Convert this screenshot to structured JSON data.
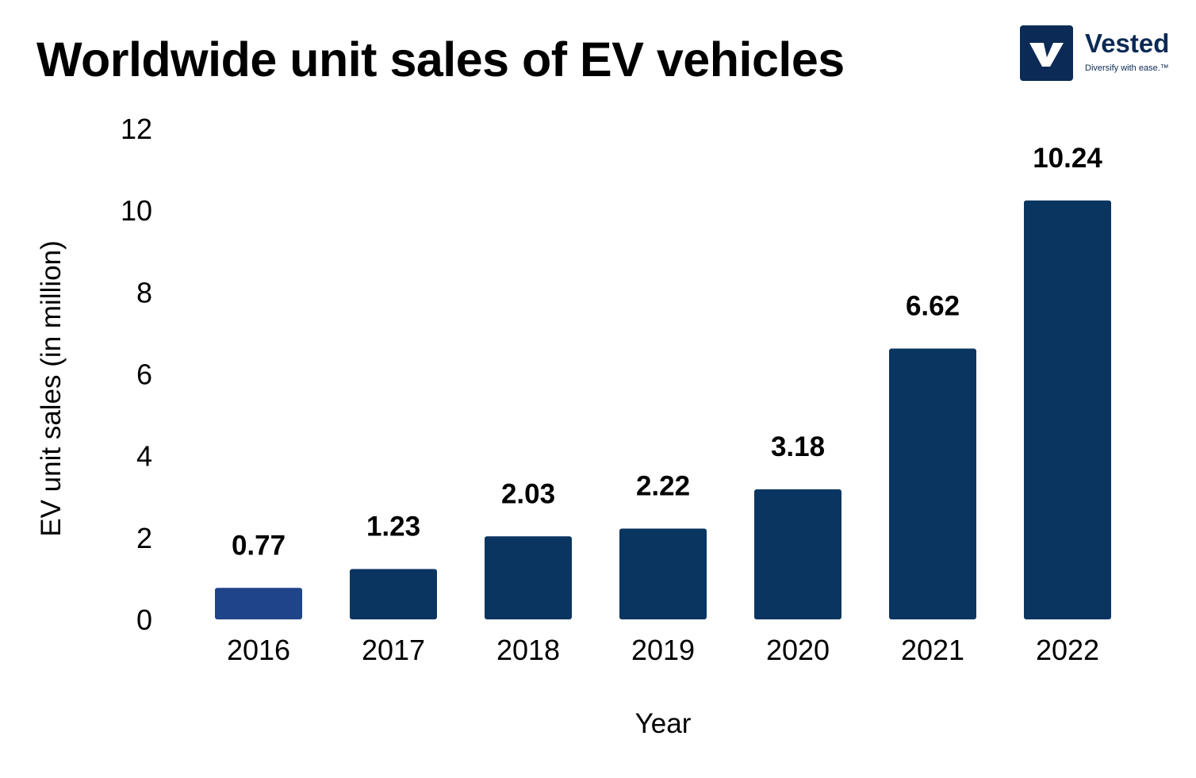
{
  "chart_data": {
    "type": "bar",
    "title": "Worldwide unit sales of EV vehicles",
    "xlabel": "Year",
    "ylabel": "EV unit sales (in million)",
    "categories": [
      "2016",
      "2017",
      "2018",
      "2019",
      "2020",
      "2021",
      "2022"
    ],
    "values": [
      0.77,
      1.23,
      2.03,
      2.22,
      3.18,
      6.62,
      10.24
    ],
    "data_labels": [
      "0.77",
      "1.23",
      "2.03",
      "2.22",
      "3.18",
      "6.62",
      "10.24"
    ],
    "ylim": [
      0,
      12
    ],
    "yticks": [
      0,
      2,
      4,
      6,
      8,
      10,
      12
    ],
    "ytick_labels": [
      "0",
      "2",
      "4",
      "6",
      "8",
      "10",
      "12"
    ],
    "grid": false,
    "legend": "none",
    "colors": {
      "bar": "#0b3561",
      "first_bar": "#1f4488"
    }
  },
  "logo": {
    "name": "Vested",
    "tagline": "Diversify with ease.™",
    "color": "#0b2a55"
  }
}
